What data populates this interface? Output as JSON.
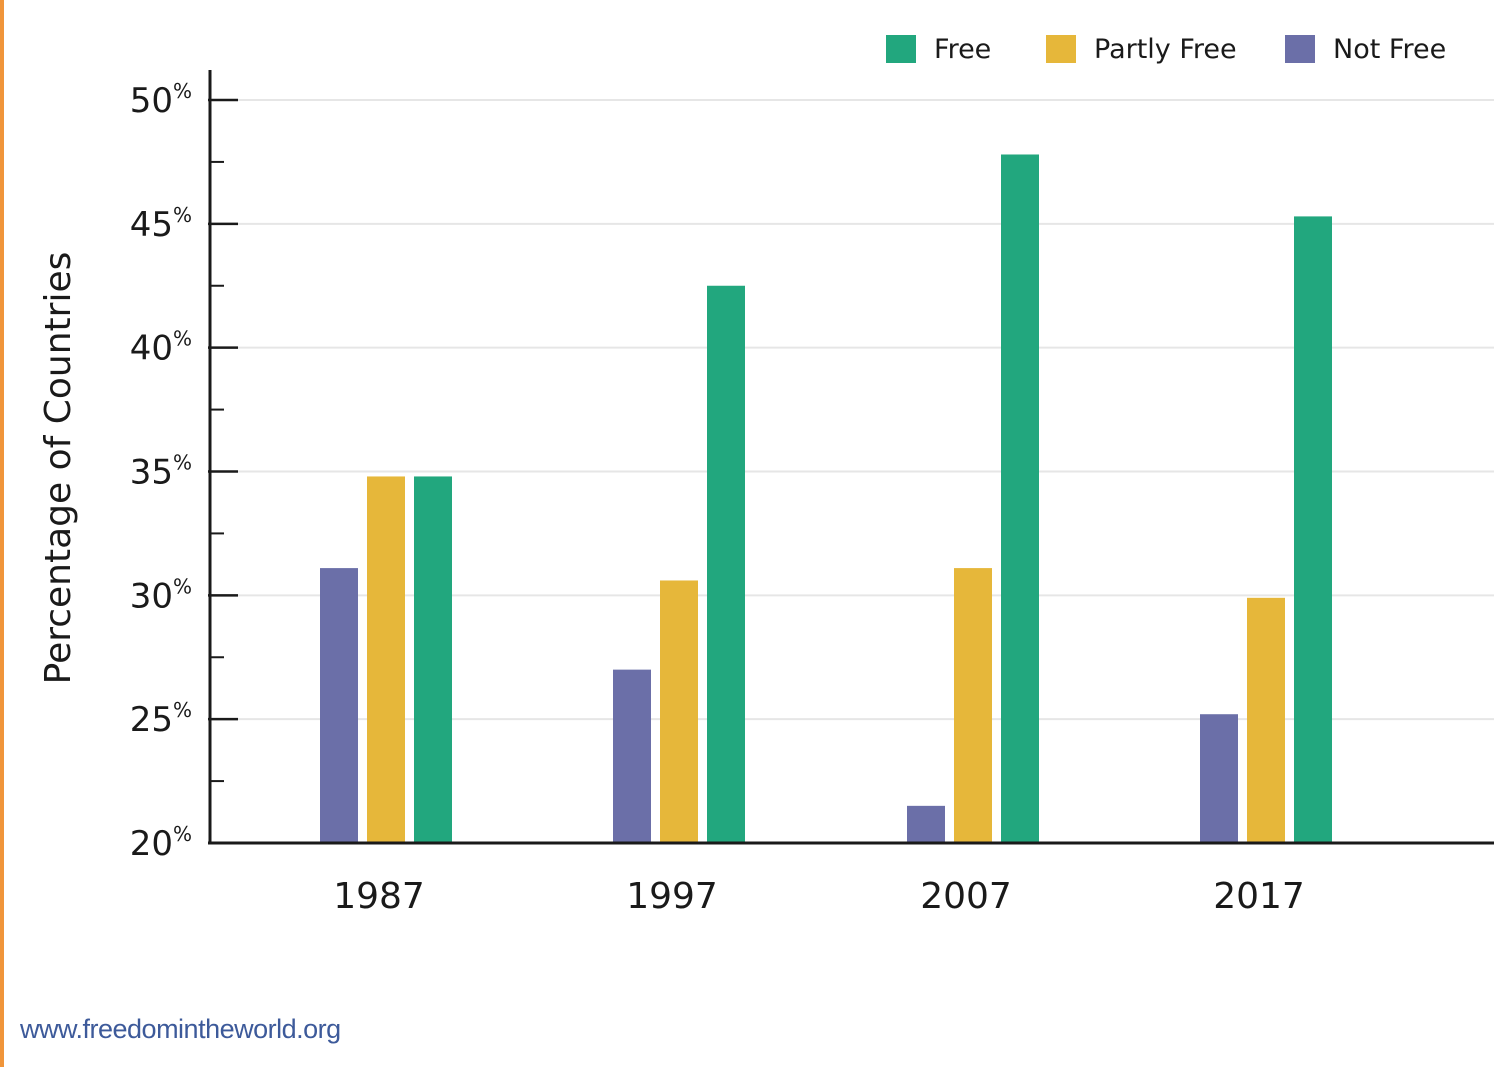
{
  "chart_data": {
    "type": "bar",
    "categories": [
      "1987",
      "1997",
      "2007",
      "2017"
    ],
    "series": [
      {
        "name": "Not Free",
        "color": "#6b6fa8",
        "values": [
          31.1,
          27.0,
          21.5,
          25.2
        ]
      },
      {
        "name": "Partly Free",
        "color": "#e6b73a",
        "values": [
          34.8,
          30.6,
          31.1,
          29.9
        ]
      },
      {
        "name": "Free",
        "color": "#22a77e",
        "values": [
          34.8,
          42.5,
          47.8,
          45.3
        ]
      }
    ],
    "legend_order": [
      "Free",
      "Partly Free",
      "Not Free"
    ],
    "legend_position": "top-right",
    "ylabel": "Percentage of Countries",
    "ylim": [
      20,
      50
    ],
    "yticks": [
      20,
      25,
      30,
      35,
      40,
      45,
      50
    ],
    "ytick_suffix": "%",
    "minor_ticks": true,
    "grid": true
  },
  "source": {
    "text": "www.freedomintheworld.org",
    "color": "#3d5a9a"
  },
  "frame": {
    "accent_color": "#f0953a"
  }
}
